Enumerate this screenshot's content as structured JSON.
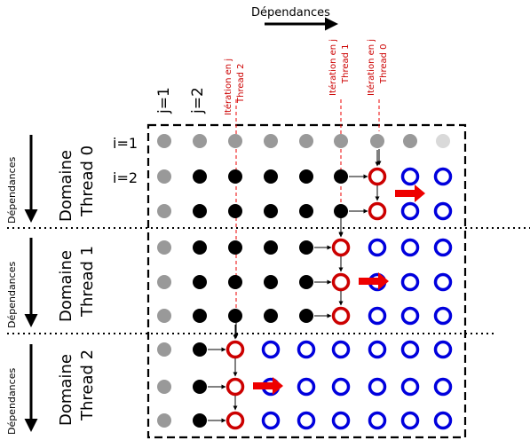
{
  "labels": {
    "top_dependencies": "Dépendances",
    "col_j1": "j=1",
    "col_j2": "j=2",
    "row_i1": "i=1",
    "row_i2": "i=2",
    "side_dependencies": "Dépendances"
  },
  "iteration_labels": [
    {
      "line1": "Itération en j",
      "line2": "Thread 2"
    },
    {
      "line1": "Itération en j",
      "line2": "Thread 1"
    },
    {
      "line1": "Itération en j",
      "line2": "Thread 0"
    }
  ],
  "domains": [
    {
      "line1": "Domaine",
      "line2": "Thread 0"
    },
    {
      "line1": "Domaine",
      "line2": "Thread 1"
    },
    {
      "line1": "Domaine",
      "line2": "Thread 2"
    }
  ],
  "grid": {
    "rows": [
      [
        "gray",
        "gray",
        "gray",
        "gray",
        "gray",
        "gray",
        "gray",
        "gray",
        "lightgray"
      ],
      [
        "gray",
        "black",
        "black",
        "black",
        "black",
        "black",
        "red",
        "blue",
        "blue"
      ],
      [
        "gray",
        "black",
        "black",
        "black",
        "black",
        "black",
        "red",
        "blue",
        "blue"
      ],
      [
        "gray",
        "black",
        "black",
        "black",
        "black",
        "red",
        "blue",
        "blue",
        "blue"
      ],
      [
        "gray",
        "black",
        "black",
        "black",
        "black",
        "red",
        "blue",
        "blue",
        "blue"
      ],
      [
        "gray",
        "black",
        "black",
        "black",
        "black",
        "red",
        "blue",
        "blue",
        "blue"
      ],
      [
        "gray",
        "black",
        "red",
        "blue",
        "blue",
        "blue",
        "blue",
        "blue",
        "blue"
      ],
      [
        "gray",
        "black",
        "red",
        "blue",
        "blue",
        "blue",
        "blue",
        "blue",
        "blue"
      ],
      [
        "gray",
        "black",
        "red",
        "blue",
        "blue",
        "blue",
        "blue",
        "blue",
        "blue"
      ]
    ]
  },
  "colors": {
    "gray": "#999999",
    "lightgray": "#d9d9d9",
    "black": "#000000",
    "red": "#cc0000",
    "blue": "#0000dd",
    "arrow_red": "#ee0000"
  }
}
